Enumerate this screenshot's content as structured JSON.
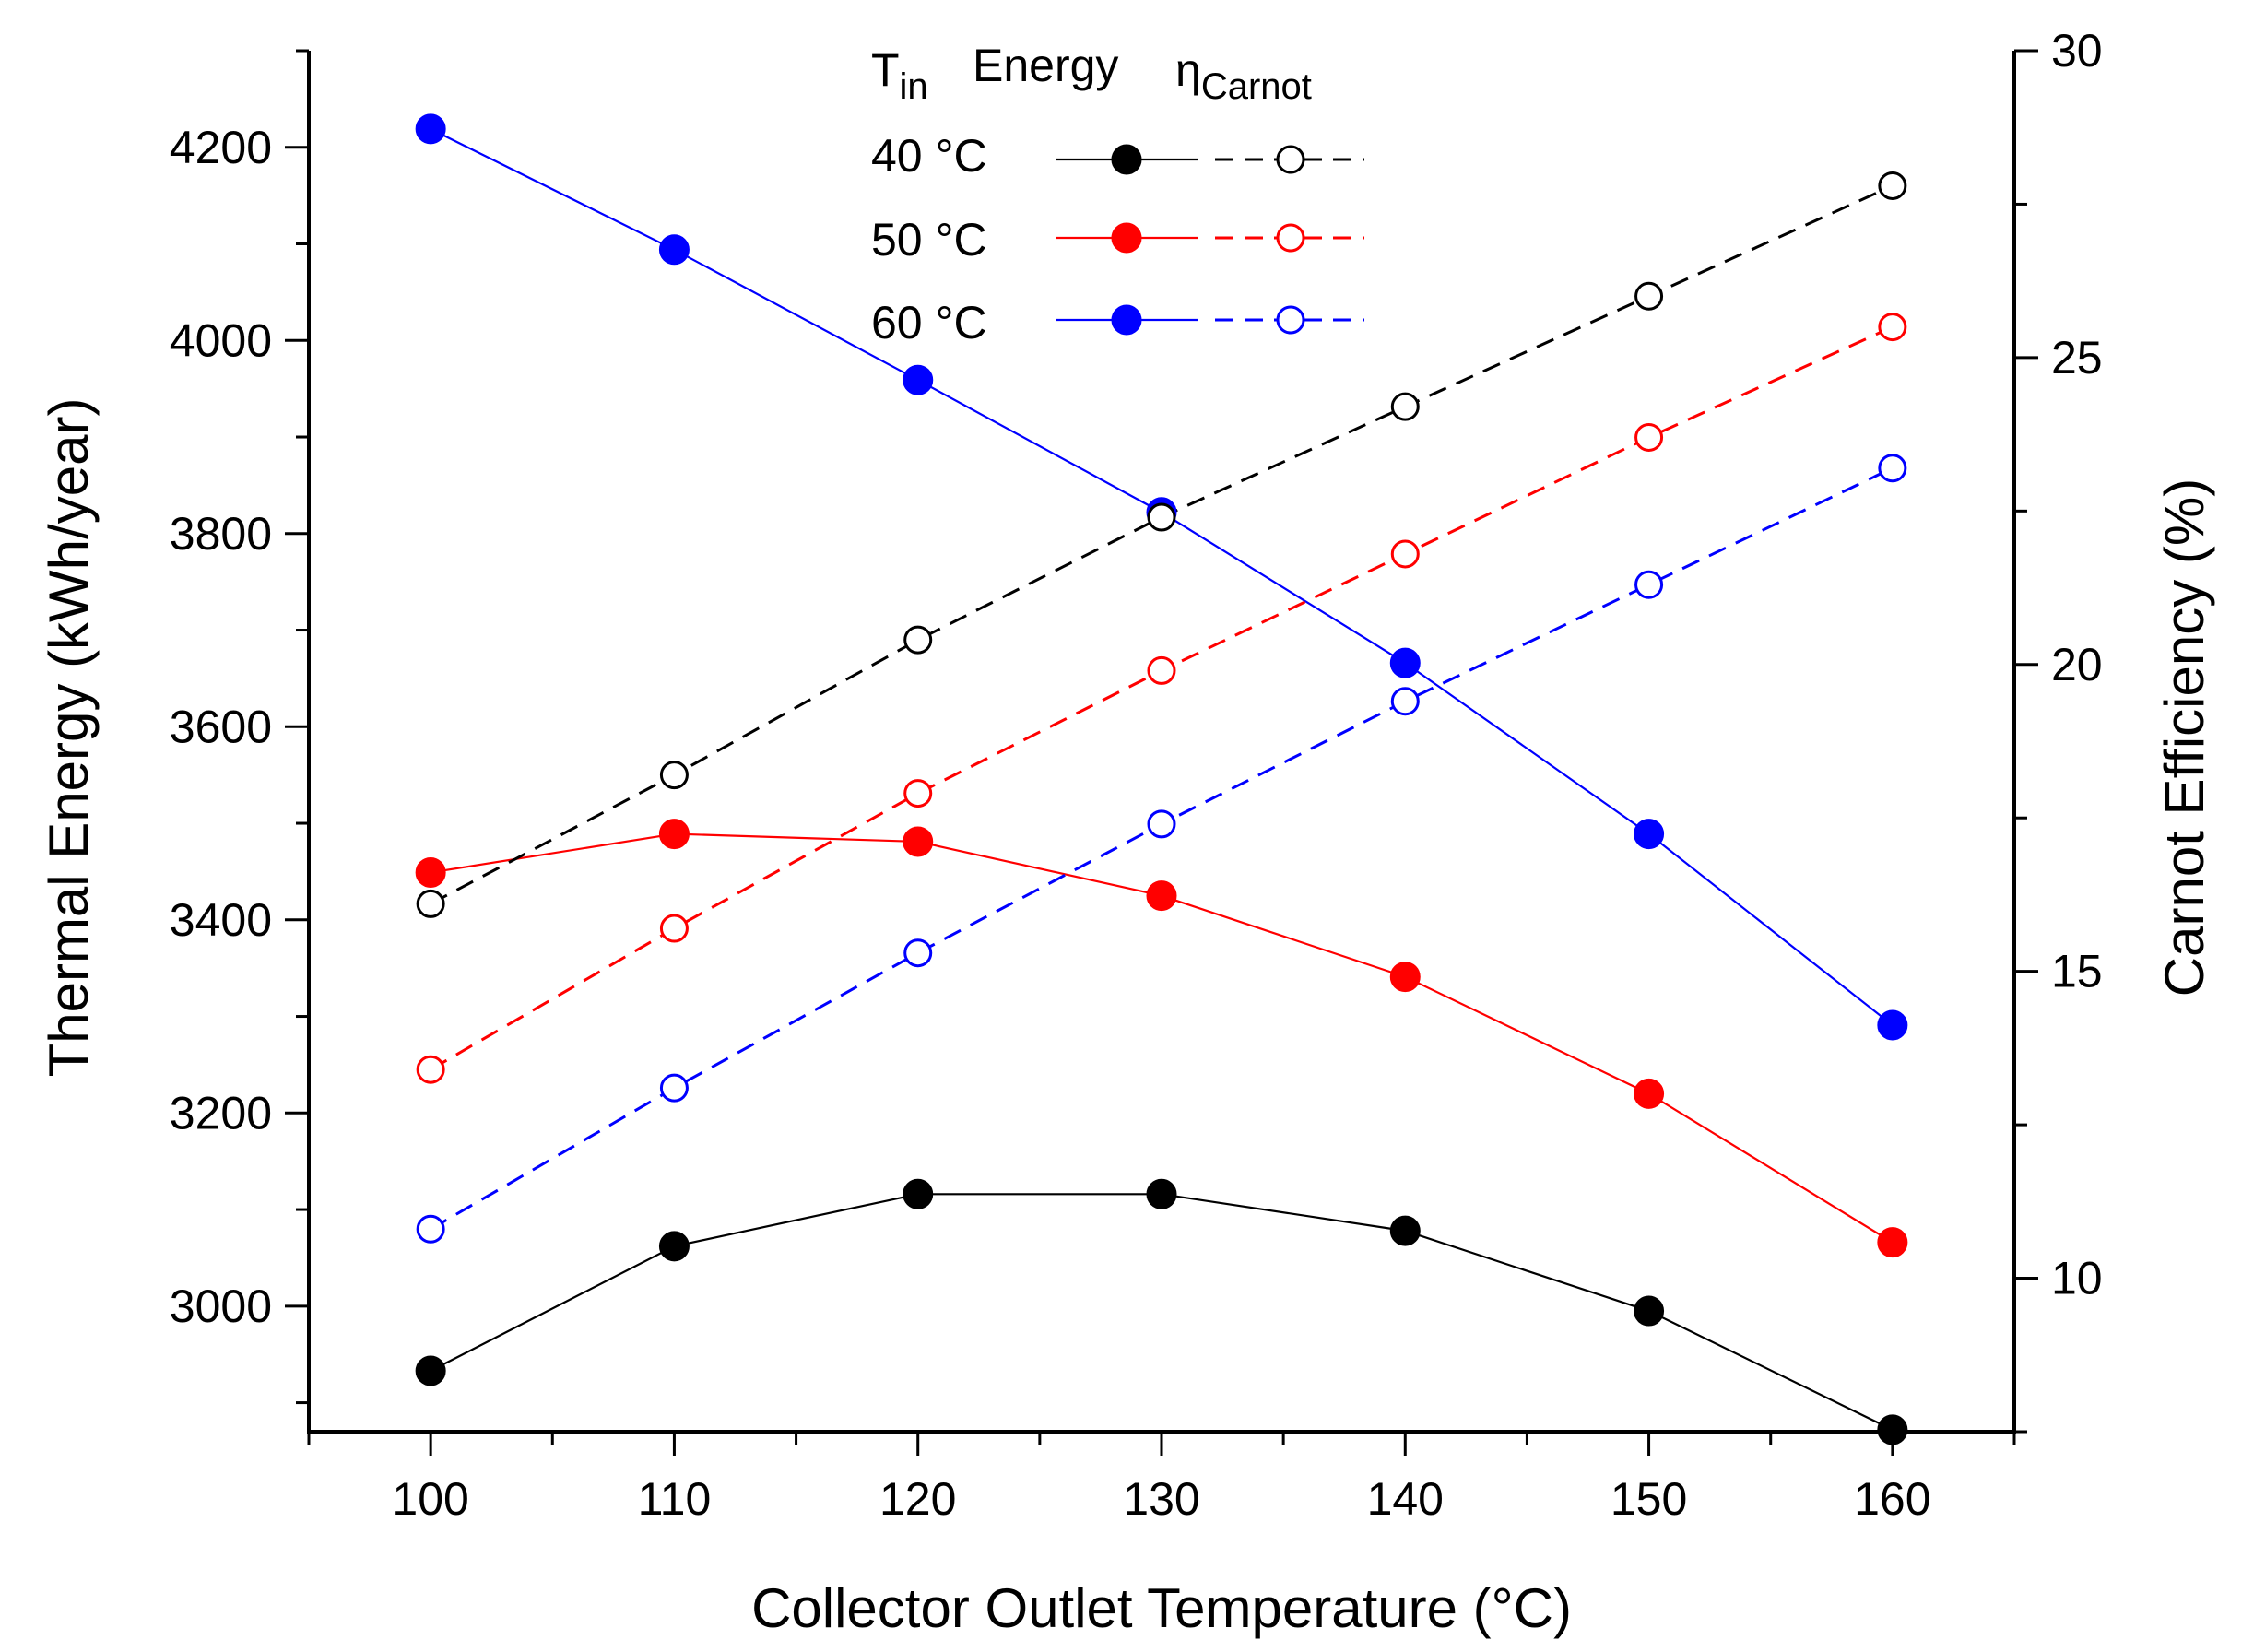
{
  "chart_data": {
    "type": "line",
    "xlabel": "Collector Outlet Temperature (°C)",
    "ylabel_left": "Thermal Energy (kWh/year)",
    "ylabel_right": "Carnot Efficiency (%)",
    "x": [
      100,
      110,
      120,
      130,
      140,
      150,
      160
    ],
    "xlim": [
      95,
      165
    ],
    "xticks": [
      "100",
      "110",
      "120",
      "130",
      "140",
      "150",
      "160"
    ],
    "ylim_left": [
      2870,
      4300
    ],
    "yticks_left": [
      "3000",
      "3200",
      "3400",
      "3600",
      "3800",
      "4000",
      "4200"
    ],
    "ylim_right": [
      7.5,
      30
    ],
    "yticks_right": [
      "10",
      "15",
      "20",
      "25",
      "30"
    ],
    "grid": false,
    "legend": {
      "position": "top-center",
      "header_tin_main": "T",
      "header_tin_sub": "in",
      "header_energy": "Energy",
      "header_eta_main": "η",
      "header_eta_sub": "Carnot",
      "rows": [
        "40 °C",
        "50 °C",
        "60 °C"
      ]
    },
    "series": [
      {
        "name": "40 °C Energy",
        "axis": "left",
        "style": "solid",
        "marker": "filled",
        "color": "#000000",
        "values": [
          2933,
          3062,
          3116,
          3116,
          3078,
          2995,
          2872
        ]
      },
      {
        "name": "50 °C Energy",
        "axis": "left",
        "style": "solid",
        "marker": "filled",
        "color": "#ff0000",
        "values": [
          3449,
          3489,
          3481,
          3425,
          3341,
          3220,
          3066
        ]
      },
      {
        "name": "60 °C Energy",
        "axis": "left",
        "style": "solid",
        "marker": "filled",
        "color": "#0000ff",
        "values": [
          4219,
          4094,
          3959,
          3822,
          3666,
          3489,
          3291
        ]
      },
      {
        "name": "40 °C ηCarnot",
        "axis": "right",
        "style": "dashed",
        "marker": "open",
        "color": "#000000",
        "values": [
          16.1,
          18.2,
          20.4,
          22.4,
          24.2,
          26.0,
          27.8
        ]
      },
      {
        "name": "50 °C ηCarnot",
        "axis": "right",
        "style": "dashed",
        "marker": "open",
        "color": "#ff0000",
        "values": [
          13.4,
          15.7,
          17.9,
          19.9,
          21.8,
          23.7,
          25.5
        ]
      },
      {
        "name": "60 °C ηCarnot",
        "axis": "right",
        "style": "dashed",
        "marker": "open",
        "color": "#0000ff",
        "values": [
          10.8,
          13.1,
          15.3,
          17.4,
          19.4,
          21.3,
          23.2
        ]
      }
    ]
  }
}
